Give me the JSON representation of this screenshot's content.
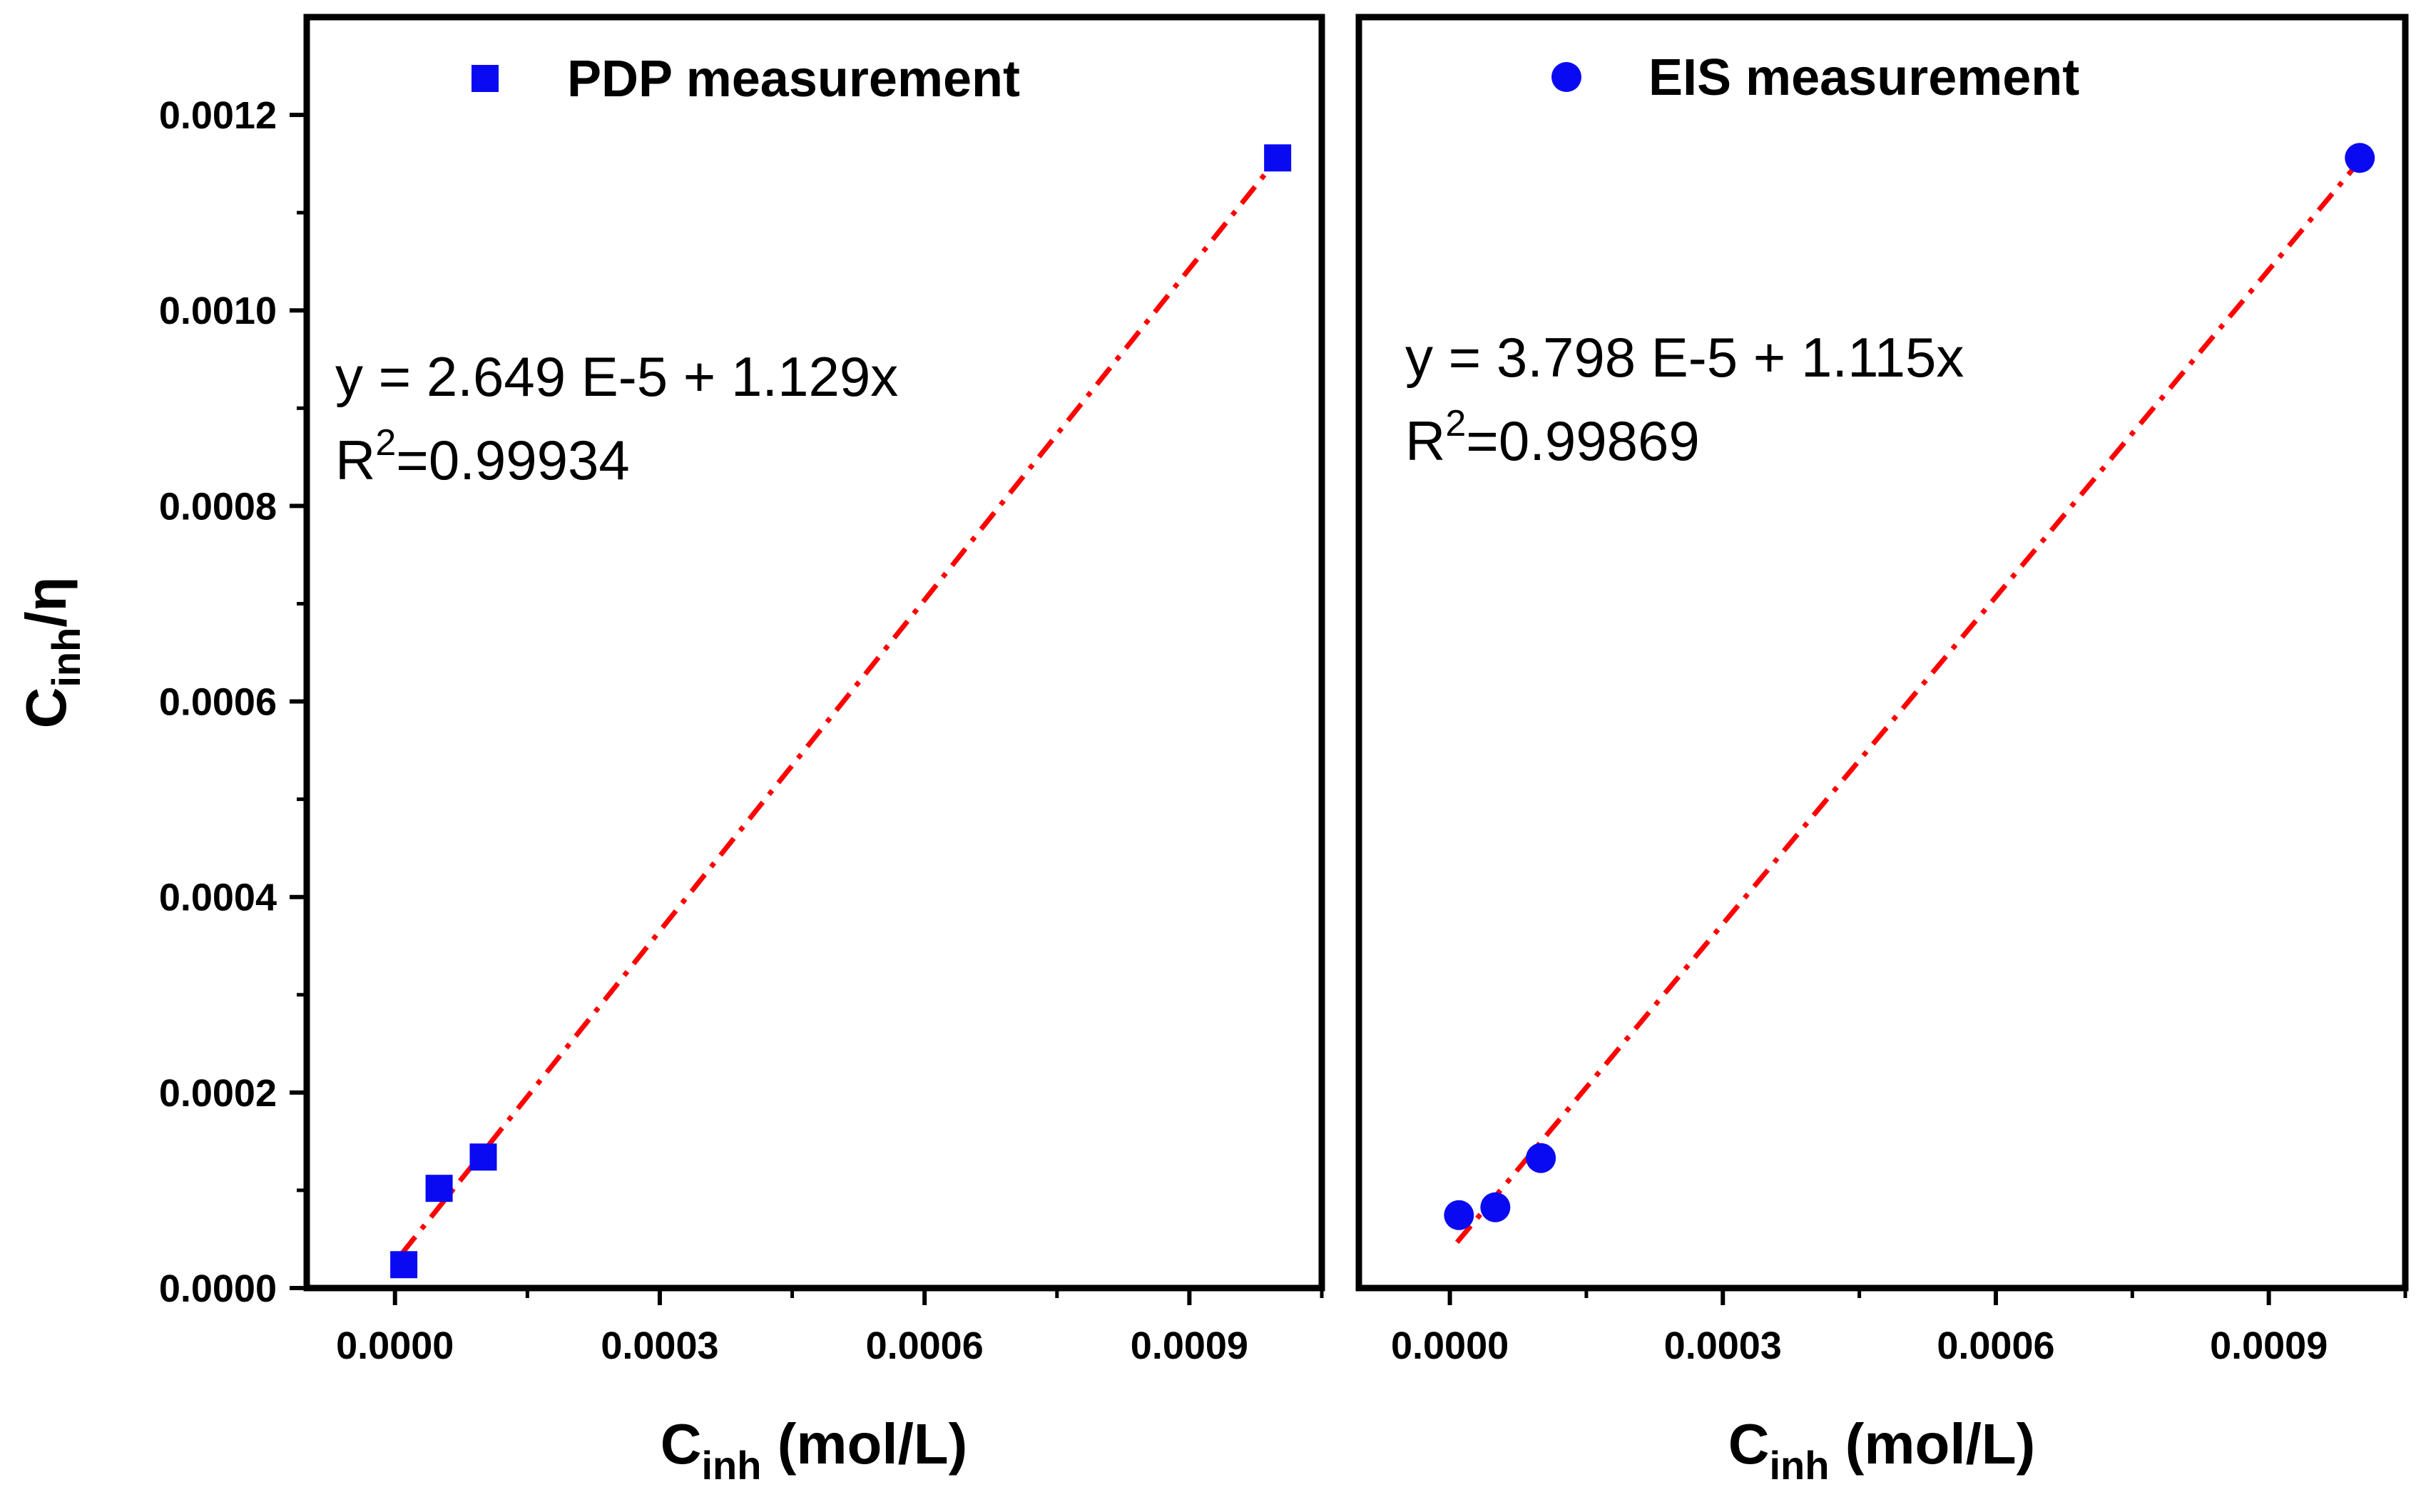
{
  "colors": {
    "marker": "#0a0af2",
    "fit_line": "#ff0000",
    "axis": "#000000"
  },
  "chart_data": [
    {
      "type": "scatter",
      "panel": "left",
      "legend": {
        "label": "PDP measurement",
        "marker": "square",
        "placement": "top"
      },
      "x": [
        1e-05,
        5e-05,
        0.0001,
        0.001
      ],
      "y": [
        2.39e-05,
        0.000102,
        0.000134,
        0.001156
      ],
      "fit": {
        "intercept": 2.649e-05,
        "slope": 1.129
      },
      "equation": "y = 2.649 E-5 + 1.129x",
      "r2_prefix": "R",
      "r2_sup": "2",
      "r2_value": "=0.99934",
      "xlabel_main": "C",
      "xlabel_sub": "inh",
      "xlabel_unit": " (mol/L)",
      "ylabel_main": "C",
      "ylabel_sub": "inh",
      "ylabel_unit": "/η",
      "xlim": [
        -0.0001,
        0.00105
      ],
      "ylim": [
        0,
        0.0013
      ],
      "xticks": [
        0,
        0.0003,
        0.0006,
        0.0009
      ],
      "xtick_labels": [
        "0.0000",
        "0.0003",
        "0.0006",
        "0.0009"
      ],
      "yticks": [
        0,
        0.0002,
        0.0004,
        0.0006,
        0.0008,
        0.001,
        0.0012
      ],
      "ytick_labels": [
        "0.0000",
        "0.0002",
        "0.0004",
        "0.0006",
        "0.0008",
        "0.0010",
        "0.0012"
      ]
    },
    {
      "type": "scatter",
      "panel": "right",
      "legend": {
        "label": "EIS measurement",
        "marker": "circle",
        "placement": "top"
      },
      "x": [
        1e-05,
        5e-05,
        0.0001,
        0.001
      ],
      "y": [
        7.46e-05,
        8.26e-05,
        0.000133,
        0.001156
      ],
      "fit": {
        "intercept": 3.798e-05,
        "slope": 1.115
      },
      "equation": "y = 3.798 E-5 + 1.115x",
      "r2_prefix": "R",
      "r2_sup": "2",
      "r2_value": "=0.99869",
      "xlabel_main": "C",
      "xlabel_sub": "inh",
      "xlabel_unit": " (mol/L)",
      "xlim": [
        -0.0001,
        0.00105
      ],
      "ylim": [
        0,
        0.0013
      ],
      "xticks": [
        0,
        0.0003,
        0.0006,
        0.0009
      ],
      "xtick_labels": [
        "0.0000",
        "0.0003",
        "0.0006",
        "0.0009"
      ]
    }
  ]
}
